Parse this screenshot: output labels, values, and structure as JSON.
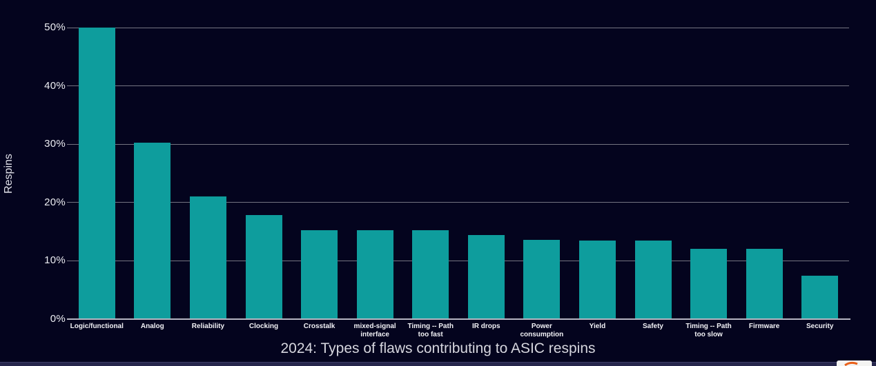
{
  "chart_data": {
    "type": "bar",
    "title": "2024: Types of flaws contributing to ASIC respins",
    "ylabel": "Respins",
    "ylim": [
      0,
      50
    ],
    "yticks": [
      0,
      10,
      20,
      30,
      40,
      50
    ],
    "ytick_suffix": "%",
    "grid": true,
    "legend": "none",
    "categories": [
      "Logic/functional",
      "Analog",
      "Reliability",
      "Clocking",
      "Crosstalk",
      "mixed-signal\ninterface",
      "Timing -- Path\ntoo fast",
      "IR drops",
      "Power\nconsumption",
      "Yield",
      "Safety",
      "Timing -- Path\ntoo slow",
      "Firmware",
      "Security"
    ],
    "values": [
      50,
      30.3,
      21,
      17.9,
      15.3,
      15.3,
      15.2,
      14.4,
      13.6,
      13.5,
      13.5,
      12,
      12.1,
      7.5
    ]
  },
  "colors": {
    "background": "#04041e",
    "bar": "#0e9d9d",
    "gridline": "#757582",
    "axis_line": "#b6b6c2",
    "text": "#ecedf2",
    "footer_strip": "#26264c",
    "logo_swoosh": "#e8601a"
  }
}
